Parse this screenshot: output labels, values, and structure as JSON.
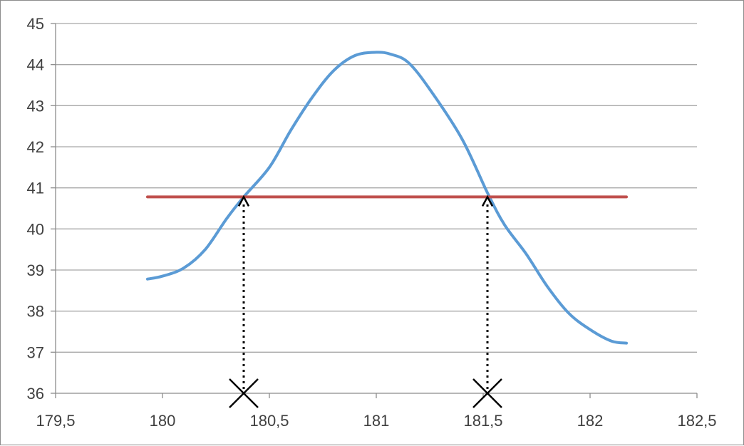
{
  "chart_data": {
    "type": "line",
    "title": "",
    "xlabel": "",
    "ylabel": "",
    "xlim": [
      179.5,
      182.5
    ],
    "ylim": [
      36,
      45
    ],
    "x_ticks": [
      179.5,
      180,
      180.5,
      181,
      181.5,
      182,
      182.5
    ],
    "x_tick_labels": [
      "179,5",
      "180",
      "180,5",
      "181",
      "181,5",
      "182",
      "182,5"
    ],
    "y_ticks": [
      36,
      37,
      38,
      39,
      40,
      41,
      42,
      43,
      44,
      45
    ],
    "y_tick_labels": [
      "36",
      "37",
      "38",
      "39",
      "40",
      "41",
      "42",
      "43",
      "44",
      "45"
    ],
    "grid": {
      "horizontal": true,
      "vertical": false
    },
    "legend": "none",
    "series": [
      {
        "color": "#5b9bd5",
        "points": [
          [
            179.93,
            38.78
          ],
          [
            180.0,
            38.85
          ],
          [
            180.1,
            39.05
          ],
          [
            180.2,
            39.5
          ],
          [
            180.3,
            40.25
          ],
          [
            180.38,
            40.78
          ],
          [
            180.5,
            41.5
          ],
          [
            180.6,
            42.4
          ],
          [
            180.7,
            43.2
          ],
          [
            180.8,
            43.85
          ],
          [
            180.9,
            44.22
          ],
          [
            181.0,
            44.3
          ],
          [
            181.07,
            44.25
          ],
          [
            181.15,
            44.05
          ],
          [
            181.25,
            43.4
          ],
          [
            181.4,
            42.2
          ],
          [
            181.52,
            40.88
          ],
          [
            181.6,
            40.1
          ],
          [
            181.7,
            39.4
          ],
          [
            181.8,
            38.6
          ],
          [
            181.9,
            37.95
          ],
          [
            182.0,
            37.55
          ],
          [
            182.1,
            37.27
          ],
          [
            182.17,
            37.22
          ]
        ]
      },
      {
        "color": "#c0504d",
        "points": [
          [
            179.93,
            40.78
          ],
          [
            182.17,
            40.78
          ]
        ]
      }
    ],
    "annotations": [
      {
        "type": "dotted-arrow",
        "x": 180.38,
        "from_y": 36,
        "to_y": 40.78,
        "marker": "x"
      },
      {
        "type": "dotted-arrow",
        "x": 181.52,
        "from_y": 36,
        "to_y": 40.78,
        "marker": "x"
      }
    ]
  }
}
